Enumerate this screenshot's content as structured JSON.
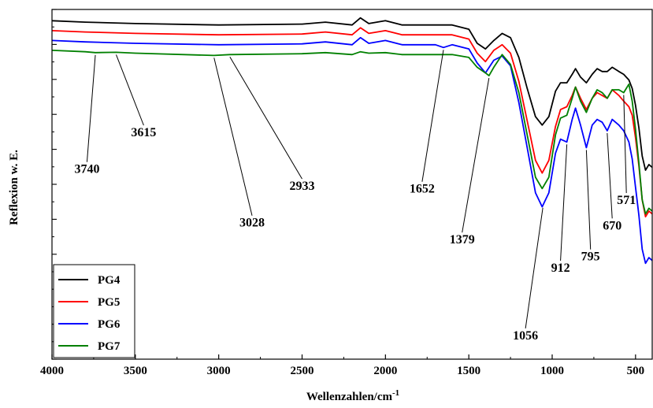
{
  "chart_data": {
    "type": "line",
    "xlabel": "Wellenzahlen/cm",
    "xlabel_superscript": "-1",
    "ylabel": "Reflexion w. E.",
    "xlim": [
      4000,
      400
    ],
    "x_reversed": true,
    "xticks": [
      "4000",
      "3500",
      "3000",
      "2500",
      "2000",
      "1500",
      "1000",
      "500"
    ],
    "yticks_labeled": false,
    "legend_position": "bottom-left",
    "series": [
      {
        "name": "PG4",
        "color": "#000000",
        "offset": 0,
        "points": [
          [
            4000,
            0.98
          ],
          [
            3800,
            0.975
          ],
          [
            3500,
            0.97
          ],
          [
            3000,
            0.965
          ],
          [
            2500,
            0.968
          ],
          [
            2360,
            0.975
          ],
          [
            2200,
            0.965
          ],
          [
            2150,
            0.99
          ],
          [
            2100,
            0.97
          ],
          [
            2000,
            0.98
          ],
          [
            1900,
            0.965
          ],
          [
            1700,
            0.965
          ],
          [
            1600,
            0.965
          ],
          [
            1500,
            0.95
          ],
          [
            1450,
            0.9
          ],
          [
            1400,
            0.88
          ],
          [
            1350,
            0.91
          ],
          [
            1300,
            0.935
          ],
          [
            1250,
            0.92
          ],
          [
            1200,
            0.85
          ],
          [
            1150,
            0.74
          ],
          [
            1100,
            0.64
          ],
          [
            1060,
            0.61
          ],
          [
            1020,
            0.64
          ],
          [
            980,
            0.73
          ],
          [
            950,
            0.76
          ],
          [
            912,
            0.76
          ],
          [
            880,
            0.79
          ],
          [
            860,
            0.81
          ],
          [
            830,
            0.78
          ],
          [
            795,
            0.76
          ],
          [
            760,
            0.79
          ],
          [
            730,
            0.81
          ],
          [
            700,
            0.8
          ],
          [
            670,
            0.8
          ],
          [
            640,
            0.815
          ],
          [
            600,
            0.8
          ],
          [
            571,
            0.79
          ],
          [
            540,
            0.77
          ],
          [
            520,
            0.74
          ],
          [
            500,
            0.68
          ],
          [
            480,
            0.6
          ],
          [
            460,
            0.5
          ],
          [
            440,
            0.45
          ],
          [
            420,
            0.47
          ],
          [
            400,
            0.46
          ]
        ]
      },
      {
        "name": "PG5",
        "color": "#ff0000",
        "offset": -0.035,
        "points": [
          [
            4000,
            0.98
          ],
          [
            3800,
            0.975
          ],
          [
            3500,
            0.97
          ],
          [
            3000,
            0.965
          ],
          [
            2500,
            0.968
          ],
          [
            2360,
            0.975
          ],
          [
            2200,
            0.965
          ],
          [
            2150,
            0.99
          ],
          [
            2100,
            0.97
          ],
          [
            2000,
            0.98
          ],
          [
            1900,
            0.965
          ],
          [
            1700,
            0.965
          ],
          [
            1600,
            0.965
          ],
          [
            1500,
            0.95
          ],
          [
            1450,
            0.9
          ],
          [
            1400,
            0.87
          ],
          [
            1350,
            0.91
          ],
          [
            1300,
            0.93
          ],
          [
            1250,
            0.9
          ],
          [
            1200,
            0.8
          ],
          [
            1150,
            0.66
          ],
          [
            1100,
            0.52
          ],
          [
            1060,
            0.475
          ],
          [
            1020,
            0.52
          ],
          [
            980,
            0.64
          ],
          [
            950,
            0.7
          ],
          [
            912,
            0.71
          ],
          [
            880,
            0.75
          ],
          [
            860,
            0.78
          ],
          [
            830,
            0.74
          ],
          [
            795,
            0.7
          ],
          [
            760,
            0.74
          ],
          [
            730,
            0.76
          ],
          [
            700,
            0.75
          ],
          [
            670,
            0.74
          ],
          [
            640,
            0.77
          ],
          [
            600,
            0.75
          ],
          [
            571,
            0.73
          ],
          [
            540,
            0.71
          ],
          [
            520,
            0.68
          ],
          [
            500,
            0.6
          ],
          [
            480,
            0.5
          ],
          [
            460,
            0.38
          ],
          [
            440,
            0.32
          ],
          [
            420,
            0.34
          ],
          [
            400,
            0.33
          ]
        ]
      },
      {
        "name": "PG6",
        "color": "#0000ff",
        "offset": -0.07,
        "points": [
          [
            4000,
            0.98
          ],
          [
            3800,
            0.975
          ],
          [
            3500,
            0.97
          ],
          [
            3000,
            0.965
          ],
          [
            2500,
            0.968
          ],
          [
            2360,
            0.975
          ],
          [
            2200,
            0.965
          ],
          [
            2150,
            0.99
          ],
          [
            2100,
            0.97
          ],
          [
            2000,
            0.98
          ],
          [
            1900,
            0.965
          ],
          [
            1700,
            0.965
          ],
          [
            1652,
            0.955
          ],
          [
            1600,
            0.965
          ],
          [
            1500,
            0.95
          ],
          [
            1450,
            0.9
          ],
          [
            1400,
            0.865
          ],
          [
            1350,
            0.91
          ],
          [
            1300,
            0.925
          ],
          [
            1250,
            0.89
          ],
          [
            1200,
            0.76
          ],
          [
            1150,
            0.6
          ],
          [
            1100,
            0.44
          ],
          [
            1060,
            0.39
          ],
          [
            1020,
            0.44
          ],
          [
            980,
            0.58
          ],
          [
            950,
            0.63
          ],
          [
            912,
            0.62
          ],
          [
            880,
            0.7
          ],
          [
            860,
            0.74
          ],
          [
            830,
            0.68
          ],
          [
            795,
            0.6
          ],
          [
            760,
            0.68
          ],
          [
            730,
            0.7
          ],
          [
            700,
            0.69
          ],
          [
            670,
            0.66
          ],
          [
            640,
            0.7
          ],
          [
            600,
            0.68
          ],
          [
            571,
            0.66
          ],
          [
            540,
            0.62
          ],
          [
            520,
            0.56
          ],
          [
            500,
            0.46
          ],
          [
            480,
            0.36
          ],
          [
            460,
            0.24
          ],
          [
            440,
            0.19
          ],
          [
            420,
            0.21
          ],
          [
            400,
            0.2
          ]
        ]
      },
      {
        "name": "PG7",
        "color": "#008000",
        "offset": -0.105,
        "points": [
          [
            4000,
            0.98
          ],
          [
            3800,
            0.975
          ],
          [
            3740,
            0.972
          ],
          [
            3615,
            0.973
          ],
          [
            3500,
            0.97
          ],
          [
            3028,
            0.962
          ],
          [
            2933,
            0.965
          ],
          [
            2500,
            0.968
          ],
          [
            2360,
            0.972
          ],
          [
            2200,
            0.965
          ],
          [
            2150,
            0.975
          ],
          [
            2100,
            0.97
          ],
          [
            2000,
            0.972
          ],
          [
            1900,
            0.965
          ],
          [
            1700,
            0.965
          ],
          [
            1600,
            0.965
          ],
          [
            1500,
            0.955
          ],
          [
            1450,
            0.92
          ],
          [
            1400,
            0.9
          ],
          [
            1379,
            0.89
          ],
          [
            1350,
            0.92
          ],
          [
            1300,
            0.965
          ],
          [
            1250,
            0.93
          ],
          [
            1200,
            0.83
          ],
          [
            1150,
            0.68
          ],
          [
            1100,
            0.53
          ],
          [
            1060,
            0.49
          ],
          [
            1020,
            0.53
          ],
          [
            980,
            0.68
          ],
          [
            950,
            0.74
          ],
          [
            912,
            0.75
          ],
          [
            880,
            0.81
          ],
          [
            860,
            0.85
          ],
          [
            830,
            0.8
          ],
          [
            795,
            0.76
          ],
          [
            760,
            0.81
          ],
          [
            730,
            0.84
          ],
          [
            700,
            0.83
          ],
          [
            670,
            0.81
          ],
          [
            640,
            0.84
          ],
          [
            600,
            0.84
          ],
          [
            571,
            0.83
          ],
          [
            540,
            0.86
          ],
          [
            520,
            0.8
          ],
          [
            500,
            0.7
          ],
          [
            480,
            0.58
          ],
          [
            460,
            0.45
          ],
          [
            440,
            0.4
          ],
          [
            420,
            0.42
          ],
          [
            400,
            0.41
          ]
        ]
      }
    ],
    "annotations": [
      {
        "label": "3740",
        "x": 3740,
        "series": "PG7",
        "text_x": 3790,
        "text_y": 0.44
      },
      {
        "label": "3615",
        "x": 3615,
        "series": "PG7",
        "text_x": 3450,
        "text_y": 0.57
      },
      {
        "label": "3028",
        "x": 3028,
        "series": "PG7",
        "text_x": 2800,
        "text_y": 0.25
      },
      {
        "label": "2933",
        "x": 2933,
        "series": "PG7",
        "text_x": 2500,
        "text_y": 0.38
      },
      {
        "label": "1652",
        "x": 1652,
        "series": "PG6",
        "text_x": 1780,
        "text_y": 0.37
      },
      {
        "label": "1379",
        "x": 1379,
        "series": "PG7",
        "text_x": 1540,
        "text_y": 0.19
      },
      {
        "label": "1056",
        "x": 1056,
        "series": "PG6",
        "text_x": 1160,
        "text_y": -0.15
      },
      {
        "label": "912",
        "x": 912,
        "series": "PG6",
        "text_x": 950,
        "text_y": 0.09
      },
      {
        "label": "795",
        "x": 795,
        "series": "PG6",
        "text_x": 770,
        "text_y": 0.13
      },
      {
        "label": "670",
        "x": 670,
        "series": "PG6",
        "text_x": 640,
        "text_y": 0.24
      },
      {
        "label": "571",
        "x": 571,
        "series": "PG7",
        "text_x": 555,
        "text_y": 0.33
      }
    ],
    "ylim": [
      -0.22,
      1.02
    ]
  }
}
